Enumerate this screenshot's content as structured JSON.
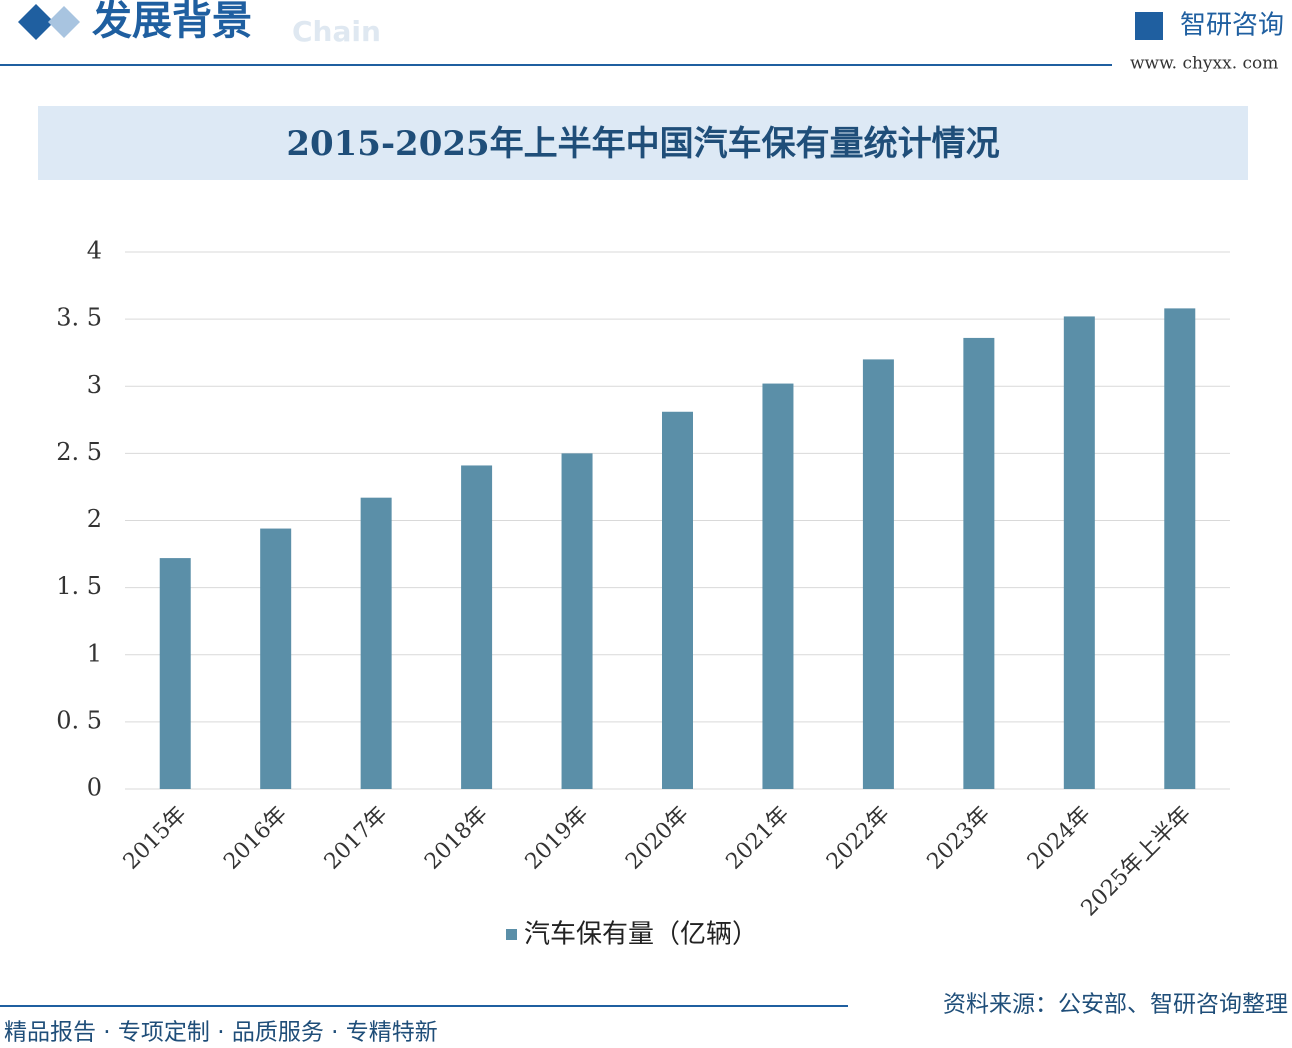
{
  "header": {
    "title": "发展背景",
    "subtitle": "Chain",
    "brand": "智研咨询",
    "url": "www. chyxx. com"
  },
  "chart_data": {
    "type": "bar",
    "title": "2015-2025年上半年中国汽车保有量统计情况",
    "categories": [
      "2015年",
      "2016年",
      "2017年",
      "2018年",
      "2019年",
      "2020年",
      "2021年",
      "2022年",
      "2023年",
      "2024年",
      "2025年上半年"
    ],
    "series": [
      {
        "name": "汽车保有量（亿辆）",
        "color": "#5b8fa8",
        "values": [
          1.72,
          1.94,
          2.17,
          2.41,
          2.5,
          2.81,
          3.02,
          3.2,
          3.36,
          3.52,
          3.58
        ]
      }
    ],
    "ylim": [
      0,
      4
    ],
    "yticks": [
      0,
      {
        "value": 0.5,
        "label": "0. 5"
      },
      1,
      {
        "value": 1.5,
        "label": "1. 5"
      },
      2,
      {
        "value": 2.5,
        "label": "2. 5"
      },
      3,
      {
        "value": 3.5,
        "label": "3. 5"
      },
      4
    ],
    "grid": true
  },
  "footer": {
    "slogan": "精品报告 · 专项定制 · 品质服务 · 专精特新",
    "source": "资料来源：公安部、智研咨询整理"
  }
}
